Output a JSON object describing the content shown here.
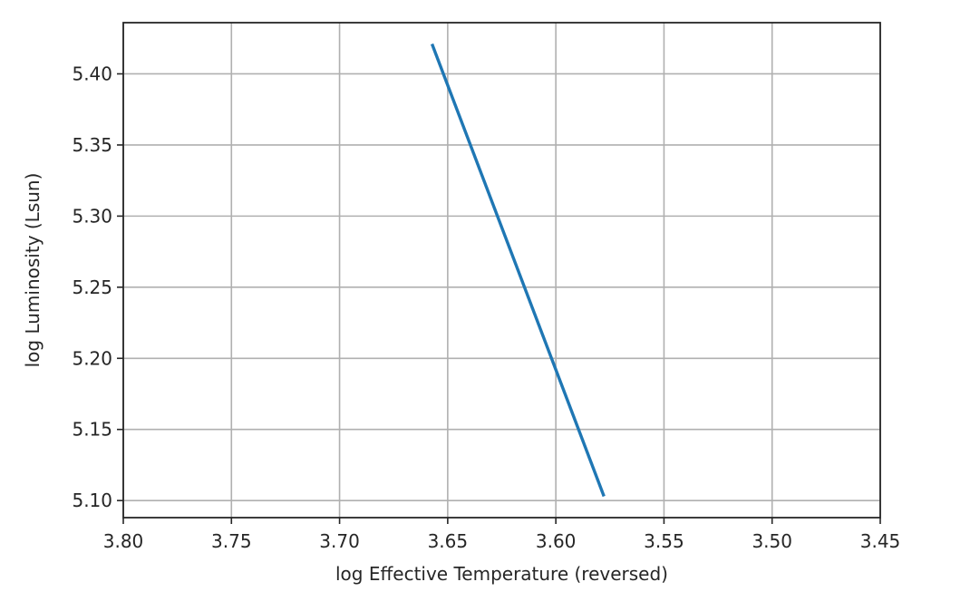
{
  "chart_data": {
    "type": "line",
    "title": "",
    "xlabel": "log Effective Temperature (reversed)",
    "ylabel": "log Luminosity (Lsun)",
    "xlim": [
      3.8,
      3.45
    ],
    "ylim": [
      5.088,
      5.436
    ],
    "x_reversed": true,
    "x_ticks": [
      "3.80",
      "3.75",
      "3.70",
      "3.65",
      "3.60",
      "3.55",
      "3.50",
      "3.45"
    ],
    "y_ticks": [
      "5.10",
      "5.15",
      "5.20",
      "5.25",
      "5.30",
      "5.35",
      "5.40"
    ],
    "grid": true,
    "legend": "none",
    "series": [
      {
        "color": "#1f77b4",
        "x": [
          3.657,
          3.578
        ],
        "y": [
          5.42,
          5.104
        ]
      }
    ]
  }
}
